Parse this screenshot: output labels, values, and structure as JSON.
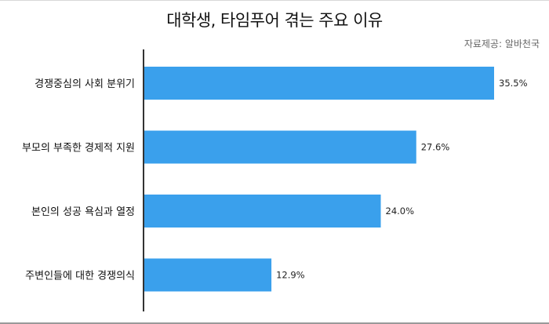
{
  "colors": {
    "bar": "#3aa0ec",
    "axis": "#333333"
  },
  "chart_data": {
    "type": "bar",
    "orientation": "horizontal",
    "title": "대학생, 타임푸어 겪는 주요 이유",
    "source": "자료제공: 알바천국",
    "categories": [
      "경쟁중심의 사회 분위기",
      "부모의 부족한 경제적 지원",
      "본인의 성공 욕심과 열정",
      "주변인들에 대한 경쟁의식"
    ],
    "values": [
      35.5,
      27.6,
      24.0,
      12.9
    ],
    "value_labels": [
      "35.5%",
      "27.6%",
      "24.0%",
      "12.9%"
    ],
    "unit": "%",
    "xlim": [
      0,
      40
    ],
    "grid": false,
    "legend": "none"
  }
}
